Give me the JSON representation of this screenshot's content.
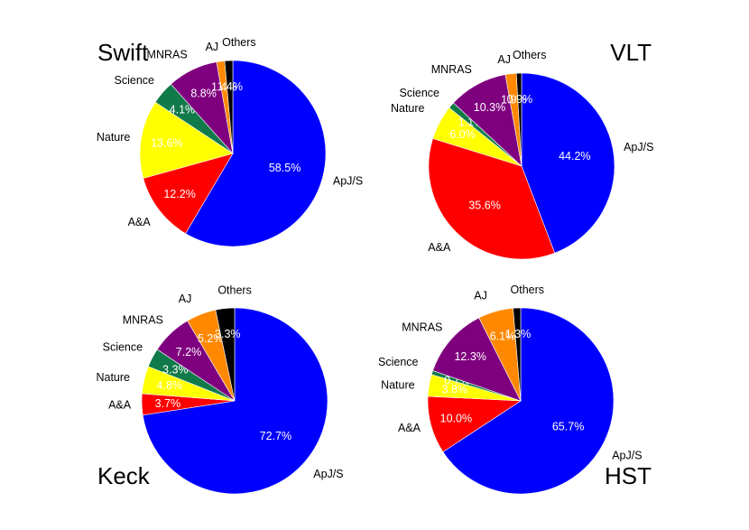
{
  "chart_data": [
    {
      "type": "pie",
      "title": "Swift",
      "categories": [
        "ApJ/S",
        "A&A",
        "Nature",
        "Science",
        "MNRAS",
        "AJ",
        "Others"
      ],
      "values": [
        58.5,
        12.2,
        13.6,
        4.1,
        8.8,
        1.4,
        1.4
      ],
      "value_labels": [
        "58.5%",
        "12.2%",
        "13.6%",
        "4.1%",
        "8.8%",
        "1.4%",
        "1.4%"
      ]
    },
    {
      "type": "pie",
      "title": "VLT",
      "categories": [
        "ApJ/S",
        "A&A",
        "Nature",
        "Science",
        "MNRAS",
        "AJ",
        "Others"
      ],
      "values": [
        44.2,
        35.6,
        6.0,
        1.1,
        10.3,
        1.9,
        0.9
      ],
      "value_labels": [
        "44.2%",
        "35.6%",
        "6.0%",
        "1.1%",
        "10.3%",
        "1.9%",
        "0.9%"
      ]
    },
    {
      "type": "pie",
      "title": "Keck",
      "categories": [
        "ApJ/S",
        "A&A",
        "Nature",
        "Science",
        "MNRAS",
        "AJ",
        "Others"
      ],
      "values": [
        72.7,
        3.7,
        4.8,
        3.3,
        7.2,
        5.2,
        3.3
      ],
      "value_labels": [
        "72.7%",
        "3.7%",
        "4.8%",
        "3.3%",
        "7.2%",
        "5.2%",
        "3.3%"
      ]
    },
    {
      "type": "pie",
      "title": "HST",
      "categories": [
        "ApJ/S",
        "A&A",
        "Nature",
        "Science",
        "MNRAS",
        "AJ",
        "Others"
      ],
      "values": [
        65.7,
        10.0,
        3.8,
        0.7,
        12.3,
        6.1,
        1.3
      ],
      "value_labels": [
        "65.7%",
        "10.0%",
        "3.8%",
        "0.7%",
        "12.3%",
        "6.1%",
        "1.3%"
      ]
    }
  ],
  "colors": {
    "ApJ/S": "#0000ff",
    "A&A": "#ff0000",
    "Nature": "#ffff00",
    "Science": "#117a4a",
    "MNRAS": "#7f007f",
    "AJ": "#ff8800",
    "Others": "#000000"
  }
}
